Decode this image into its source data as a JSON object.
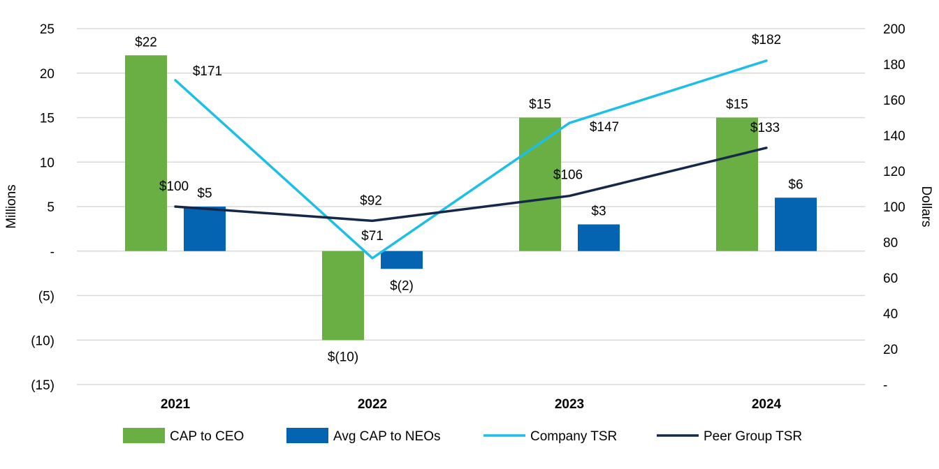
{
  "chart_data": {
    "type": "bar",
    "categories": [
      "2021",
      "2022",
      "2023",
      "2024"
    ],
    "left_axis": {
      "label": "Millions",
      "range": [
        -15,
        25
      ],
      "ticks": [
        25,
        20,
        15,
        10,
        5,
        0,
        -5,
        -10,
        -15
      ],
      "tick_labels": [
        "25",
        "20",
        "15",
        "10",
        "5",
        "-",
        "(5)",
        "(10)",
        "(15)"
      ]
    },
    "right_axis": {
      "label": "Dollars",
      "range": [
        0,
        200
      ],
      "ticks": [
        200,
        180,
        160,
        140,
        120,
        100,
        80,
        60,
        40,
        20,
        0
      ],
      "tick_labels": [
        "200",
        "180",
        "160",
        "140",
        "120",
        "100",
        "80",
        "60",
        "40",
        "20",
        "-"
      ]
    },
    "bar_series": [
      {
        "name": "CAP to CEO",
        "color": "#6aaf44",
        "values": [
          22,
          -10,
          15,
          15
        ],
        "labels": [
          "$22",
          "$(10)",
          "$15",
          "$15"
        ]
      },
      {
        "name": "Avg CAP to NEOs",
        "color": "#0564b2",
        "values": [
          5,
          -2,
          3,
          6
        ],
        "labels": [
          "$5",
          "$(2)",
          "$3",
          "$6"
        ]
      }
    ],
    "line_series": [
      {
        "name": "Company TSR",
        "color": "#1ebfe6",
        "values": [
          171,
          71,
          147,
          182
        ],
        "labels": [
          "$171",
          "$71",
          "$147",
          "$182"
        ]
      },
      {
        "name": "Peer Group TSR",
        "color": "#15284a",
        "values": [
          100,
          92,
          106,
          133
        ],
        "labels": [
          "$100",
          "$92",
          "$106",
          "$133"
        ]
      }
    ],
    "legend_position": "bottom",
    "grid": true
  }
}
